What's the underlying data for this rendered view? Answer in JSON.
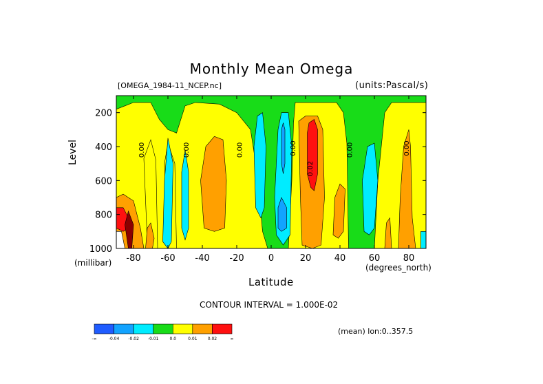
{
  "chart_data": {
    "type": "heatmap",
    "title": "Monthly Mean Omega",
    "subtitle_left": "[OMEGA_1984-11_NCEP.nc]",
    "subtitle_right": "(units:Pascal/s)",
    "xlabel": "Latitude",
    "xlabel_units": "(degrees_north)",
    "ylabel": "Level",
    "ylabel_units": "(millibar)",
    "xlim": [
      -90,
      90
    ],
    "ylim": [
      1000,
      100
    ],
    "x_ticks": [
      -80,
      -60,
      -40,
      -20,
      0,
      20,
      40,
      60,
      80
    ],
    "y_ticks": [
      200,
      400,
      600,
      800,
      1000
    ],
    "contour_interval_text": "CONTOUR INTERVAL = 1.000E-02",
    "mean_note": "(mean) lon:0..357.5",
    "colorbar": {
      "colors": [
        "#1f5cff",
        "#12a3ff",
        "#00ecff",
        "#18dc18",
        "#ffff00",
        "#ffa000",
        "#ff1010"
      ],
      "labels": [
        "-∞",
        "-0.04",
        "-0.02",
        "-0.01",
        "0.0",
        "0.01",
        "0.02",
        "∞"
      ]
    },
    "contour_labels": [
      {
        "text": "0.00",
        "lat": -74,
        "level": 420
      },
      {
        "text": "0.00",
        "lat": -48,
        "level": 420
      },
      {
        "text": "0.00",
        "lat": -17,
        "level": 420
      },
      {
        "text": "0.00",
        "lat": 14,
        "level": 410
      },
      {
        "text": "0.02",
        "lat": 24,
        "level": 530
      },
      {
        "text": "0.00",
        "lat": 47,
        "level": 420
      },
      {
        "text": "0.00",
        "lat": 80,
        "level": 410
      }
    ],
    "regions": [
      {
        "color": "#ffff00",
        "points": [
          [
            -90,
            1000
          ],
          [
            -90,
            180
          ],
          [
            -85,
            160
          ],
          [
            -80,
            140
          ],
          [
            -70,
            140
          ],
          [
            -65,
            240
          ],
          [
            -60,
            300
          ],
          [
            -55,
            320
          ],
          [
            -50,
            160
          ],
          [
            -44,
            140
          ],
          [
            -30,
            150
          ],
          [
            -20,
            200
          ],
          [
            -12,
            300
          ],
          [
            -8,
            560
          ],
          [
            -5,
            900
          ],
          [
            -2,
            1000
          ]
        ]
      },
      {
        "color": "#ffff00",
        "points": [
          [
            10,
            1000
          ],
          [
            12,
            600
          ],
          [
            13,
            260
          ],
          [
            14,
            140
          ],
          [
            38,
            140
          ],
          [
            42,
            200
          ],
          [
            44,
            380
          ],
          [
            45,
            1000
          ]
        ]
      },
      {
        "color": "#ffff00",
        "points": [
          [
            60,
            1000
          ],
          [
            62,
            600
          ],
          [
            66,
            200
          ],
          [
            70,
            140
          ],
          [
            90,
            140
          ],
          [
            90,
            1000
          ]
        ]
      },
      {
        "color": "#ffff00",
        "points": [
          [
            -66,
            1000
          ],
          [
            -67,
            480
          ],
          [
            -70,
            360
          ],
          [
            -74,
            470
          ],
          [
            -72,
            960
          ],
          [
            -70,
            1000
          ]
        ]
      },
      {
        "color": "#ffff00",
        "points": [
          [
            -55,
            1000
          ],
          [
            -56,
            500
          ],
          [
            -60,
            380
          ],
          [
            -62,
            500
          ],
          [
            -60,
            1000
          ]
        ]
      },
      {
        "color": "#00ecff",
        "points": [
          [
            -63,
            960
          ],
          [
            -62,
            600
          ],
          [
            -60,
            350
          ],
          [
            -57,
            500
          ],
          [
            -58,
            960
          ],
          [
            -60,
            1000
          ]
        ]
      },
      {
        "color": "#00ecff",
        "points": [
          [
            -52,
            880
          ],
          [
            -52,
            550
          ],
          [
            -50,
            420
          ],
          [
            -48,
            550
          ],
          [
            -48,
            880
          ],
          [
            -50,
            950
          ]
        ]
      },
      {
        "color": "#00ecff",
        "points": [
          [
            -9,
            760
          ],
          [
            -10,
            400
          ],
          [
            -8,
            220
          ],
          [
            -5,
            200
          ],
          [
            -3,
            400
          ],
          [
            -4,
            760
          ],
          [
            -6,
            820
          ]
        ]
      },
      {
        "color": "#00ecff",
        "points": [
          [
            3,
            920
          ],
          [
            2,
            700
          ],
          [
            4,
            300
          ],
          [
            6,
            200
          ],
          [
            10,
            200
          ],
          [
            12,
            400
          ],
          [
            11,
            920
          ],
          [
            7,
            980
          ]
        ]
      },
      {
        "color": "#00ecff",
        "points": [
          [
            54,
            900
          ],
          [
            53,
            600
          ],
          [
            56,
            400
          ],
          [
            60,
            380
          ],
          [
            62,
            600
          ],
          [
            60,
            880
          ],
          [
            57,
            920
          ]
        ]
      },
      {
        "color": "#00ecff",
        "points": [
          [
            87,
            1000
          ],
          [
            87,
            900
          ],
          [
            90,
            900
          ],
          [
            90,
            1000
          ]
        ]
      },
      {
        "color": "#12a3ff",
        "points": [
          [
            6,
            300
          ],
          [
            7,
            260
          ],
          [
            8,
            300
          ],
          [
            8,
            500
          ],
          [
            7,
            560
          ],
          [
            6,
            500
          ]
        ]
      },
      {
        "color": "#12a3ff",
        "points": [
          [
            4,
            880
          ],
          [
            4,
            760
          ],
          [
            6,
            700
          ],
          [
            9,
            760
          ],
          [
            9,
            880
          ],
          [
            6,
            900
          ]
        ]
      },
      {
        "color": "#ffa000",
        "points": [
          [
            -39,
            880
          ],
          [
            -41,
            600
          ],
          [
            -38,
            400
          ],
          [
            -33,
            340
          ],
          [
            -28,
            360
          ],
          [
            -26,
            600
          ],
          [
            -27,
            880
          ],
          [
            -33,
            900
          ]
        ]
      },
      {
        "color": "#ffa000",
        "points": [
          [
            18,
            980
          ],
          [
            17,
            700
          ],
          [
            16,
            250
          ],
          [
            20,
            220
          ],
          [
            27,
            220
          ],
          [
            30,
            300
          ],
          [
            31,
            700
          ],
          [
            29,
            980
          ],
          [
            24,
            1000
          ]
        ]
      },
      {
        "color": "#ffa000",
        "points": [
          [
            36,
            920
          ],
          [
            37,
            700
          ],
          [
            40,
            620
          ],
          [
            43,
            650
          ],
          [
            42,
            900
          ],
          [
            39,
            940
          ]
        ]
      },
      {
        "color": "#ffa000",
        "points": [
          [
            -90,
            1000
          ],
          [
            -90,
            700
          ],
          [
            -86,
            680
          ],
          [
            -80,
            720
          ],
          [
            -76,
            880
          ],
          [
            -74,
            1000
          ]
        ]
      },
      {
        "color": "#ffa000",
        "points": [
          [
            -73,
            1000
          ],
          [
            -72,
            880
          ],
          [
            -70,
            850
          ],
          [
            -68,
            940
          ],
          [
            -69,
            1000
          ]
        ]
      },
      {
        "color": "#ffa000",
        "points": [
          [
            66,
            1000
          ],
          [
            67,
            850
          ],
          [
            69,
            820
          ],
          [
            70,
            1000
          ]
        ]
      },
      {
        "color": "#ffa000",
        "points": [
          [
            74,
            1000
          ],
          [
            75,
            700
          ],
          [
            77,
            400
          ],
          [
            80,
            300
          ],
          [
            81,
            400
          ],
          [
            82,
            820
          ],
          [
            84,
            1000
          ]
        ]
      },
      {
        "color": "#ff1010",
        "points": [
          [
            21,
            560
          ],
          [
            21,
            320
          ],
          [
            22,
            260
          ],
          [
            25,
            240
          ],
          [
            27,
            300
          ],
          [
            27,
            560
          ],
          [
            25,
            660
          ],
          [
            23,
            640
          ]
        ]
      },
      {
        "color": "#ff1010",
        "points": [
          [
            -90,
            880
          ],
          [
            -90,
            760
          ],
          [
            -86,
            760
          ],
          [
            -83,
            820
          ],
          [
            -83,
            880
          ],
          [
            -86,
            900
          ]
        ]
      },
      {
        "color": "#ffffff",
        "points": [
          [
            -90,
            1000
          ],
          [
            -90,
            900
          ],
          [
            -87,
            900
          ],
          [
            -85,
            1000
          ]
        ]
      },
      {
        "color": "#8b0000",
        "points": [
          [
            -83,
            1000
          ],
          [
            -85,
            860
          ],
          [
            -83,
            780
          ],
          [
            -80,
            860
          ],
          [
            -81,
            1000
          ]
        ]
      }
    ]
  }
}
